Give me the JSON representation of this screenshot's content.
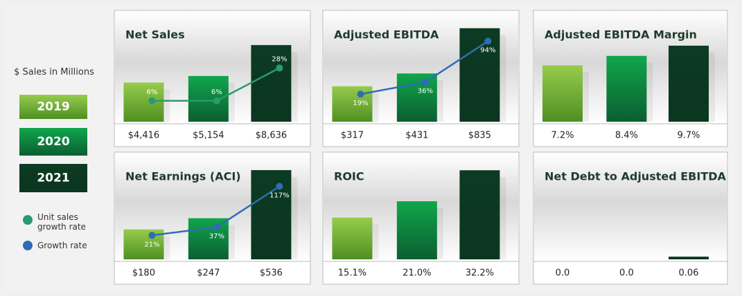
{
  "legend": {
    "heading": "$ Sales in Millions",
    "years": [
      "2019",
      "2020",
      "2021"
    ],
    "year_colors": [
      "#7ab733",
      "#0d9446",
      "#0c3a22"
    ]
  },
  "chart_data": [
    {
      "type": "bar",
      "title": "Net Sales",
      "values": [
        4416,
        5154,
        8636
      ],
      "value_labels": [
        "$4,416",
        "$5,154",
        "$8,636"
      ],
      "ylim": [
        0,
        10600
      ],
      "line": {
        "name": "Unit sales growth rate",
        "color": "#2a9a6e",
        "values": [
          6,
          6,
          28
        ],
        "value_labels": [
          "6%",
          "6%",
          "28%"
        ],
        "y2lim": [
          -8,
          55
        ]
      }
    },
    {
      "type": "bar",
      "title": "Adjusted EBITDA",
      "values": [
        317,
        431,
        835
      ],
      "value_labels": [
        "$317",
        "$431",
        "$835"
      ],
      "ylim": [
        0,
        840
      ],
      "line": {
        "name": "Growth rate",
        "color": "#2e6db4",
        "values": [
          19,
          36,
          94
        ],
        "value_labels": [
          "19%",
          "36%",
          "94%"
        ],
        "y2lim": [
          -20,
          113
        ]
      }
    },
    {
      "type": "bar",
      "title": "Adjusted EBITDA Margin",
      "values": [
        7.2,
        8.4,
        9.7
      ],
      "value_labels": [
        "7.2%",
        "8.4%",
        "9.7%"
      ],
      "ylim": [
        0,
        12
      ]
    },
    {
      "type": "bar",
      "title": "Net Earnings (ACI)",
      "values": [
        180,
        247,
        536
      ],
      "value_labels": [
        "$180",
        "$247",
        "$536"
      ],
      "ylim": [
        0,
        540
      ],
      "line": {
        "name": "Growth rate",
        "color": "#2e6db4",
        "values": [
          21,
          37,
          117
        ],
        "value_labels": [
          "21%",
          "37%",
          "117%"
        ],
        "y2lim": [
          -26,
          150
        ]
      }
    },
    {
      "type": "bar",
      "title": "ROIC",
      "values": [
        15.1,
        21.0,
        32.2
      ],
      "value_labels": [
        "15.1%",
        "21.0%",
        "32.2%"
      ],
      "ylim": [
        0,
        32.5
      ]
    },
    {
      "type": "bar",
      "title": "Net Debt to Adjusted EBITDA",
      "values": [
        0,
        0,
        0.06
      ],
      "value_labels": [
        "0.0",
        "0.0",
        "0.06"
      ],
      "ylim": [
        0,
        2
      ]
    }
  ]
}
